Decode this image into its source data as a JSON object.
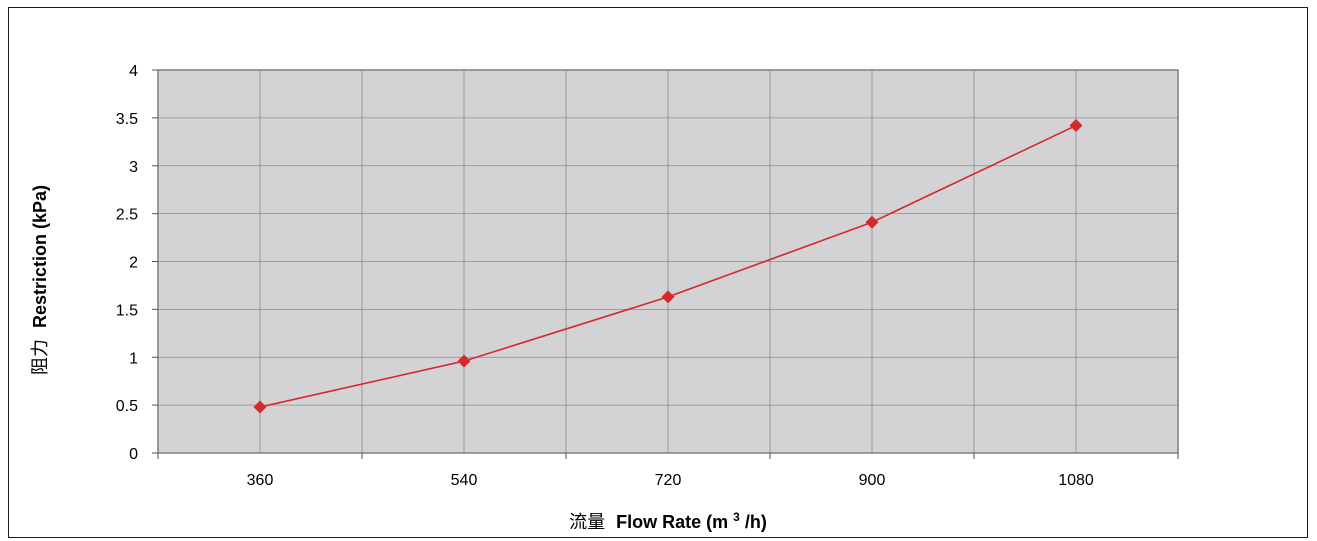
{
  "chart_data": {
    "type": "line",
    "x": [
      360,
      540,
      720,
      900,
      1080
    ],
    "categories": [
      "360",
      "540",
      "720",
      "900",
      "1080"
    ],
    "series": [
      {
        "values": [
          0.48,
          0.96,
          1.63,
          2.41,
          3.42
        ]
      }
    ],
    "xlabel_cn": "流量",
    "xlabel_en": "Flow Rate (m",
    "xlabel_sup": "3",
    "xlabel_tail": "/h)",
    "ylabel_cn": "阻力",
    "ylabel_en": "Restriction (kPa)",
    "ylim": [
      0,
      4
    ],
    "yticks": [
      "0",
      "0.5",
      "1",
      "1.5",
      "2",
      "2.5",
      "3",
      "3.5",
      "4"
    ],
    "grid": true,
    "legend": "none",
    "colors": {
      "line": "#d42a2e",
      "marker": "#d42a2e",
      "plot_bg": "#d3d3d5",
      "grid": "#8c8c8c",
      "axis": "#7f7f7f"
    }
  }
}
